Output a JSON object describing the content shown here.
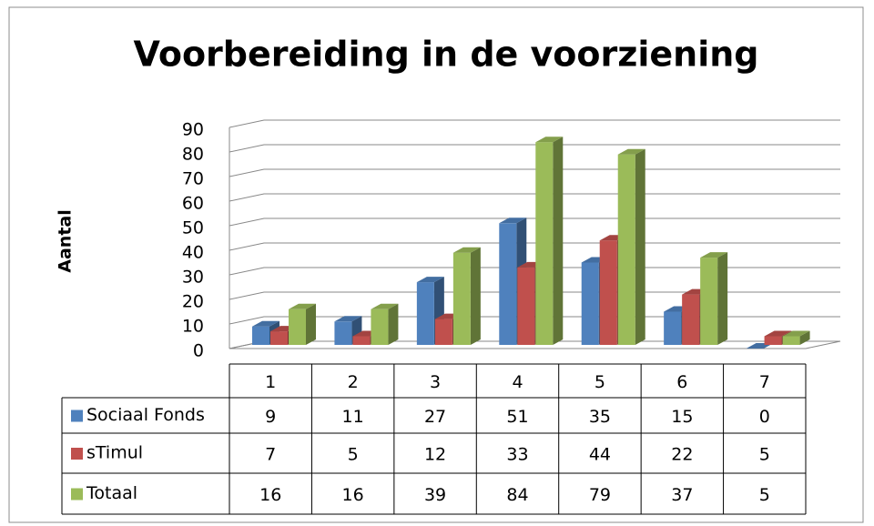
{
  "chart_data": {
    "type": "bar",
    "title": "Voorbereiding in de voorziening",
    "y_label": "Aantal",
    "categories": [
      "1",
      "2",
      "3",
      "4",
      "5",
      "6",
      "7"
    ],
    "series": [
      {
        "name": "Sociaal Fonds",
        "color": "#4f81bd",
        "values": [
          9,
          11,
          27,
          51,
          35,
          15,
          0
        ]
      },
      {
        "name": "sTimul",
        "color": "#c0504d",
        "values": [
          7,
          5,
          12,
          33,
          44,
          22,
          5
        ]
      },
      {
        "name": "Totaal",
        "color": "#9bbb59",
        "values": [
          16,
          16,
          39,
          84,
          79,
          37,
          5
        ]
      }
    ],
    "ylim": [
      0,
      90
    ],
    "yticks": [
      0,
      10,
      20,
      30,
      40,
      50,
      60,
      70,
      80,
      90
    ],
    "grid": true,
    "data_table": true
  }
}
